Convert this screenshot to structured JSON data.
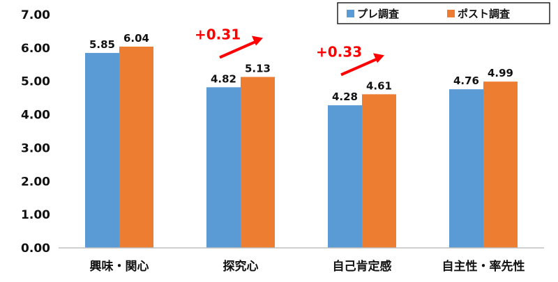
{
  "colors": {
    "pre": "#5B9BD5",
    "post": "#ED7D31",
    "annotation": "#FF0000",
    "axis": "#BFBFBF"
  },
  "chart_data": {
    "type": "bar",
    "categories": [
      "興味・関心",
      "探究心",
      "自己肯定感",
      "自主性・率先性"
    ],
    "series": [
      {
        "name": "プレ調査",
        "values": [
          5.85,
          4.82,
          4.28,
          4.76
        ]
      },
      {
        "name": "ポスト調査",
        "values": [
          6.04,
          5.13,
          4.61,
          4.99
        ]
      }
    ],
    "ylim": [
      0,
      7
    ],
    "yticks": [
      "0.00",
      "1.00",
      "2.00",
      "3.00",
      "4.00",
      "5.00",
      "6.00",
      "7.00"
    ],
    "data_labels": [
      [
        "5.85",
        "4.82",
        "4.28",
        "4.76"
      ],
      [
        "6.04",
        "5.13",
        "4.61",
        "4.99"
      ]
    ],
    "legend_position": "top-right",
    "grid": false,
    "annotations": [
      {
        "text": "+0.31",
        "category": "探究心"
      },
      {
        "text": "+0.33",
        "category": "自己肯定感"
      }
    ]
  }
}
